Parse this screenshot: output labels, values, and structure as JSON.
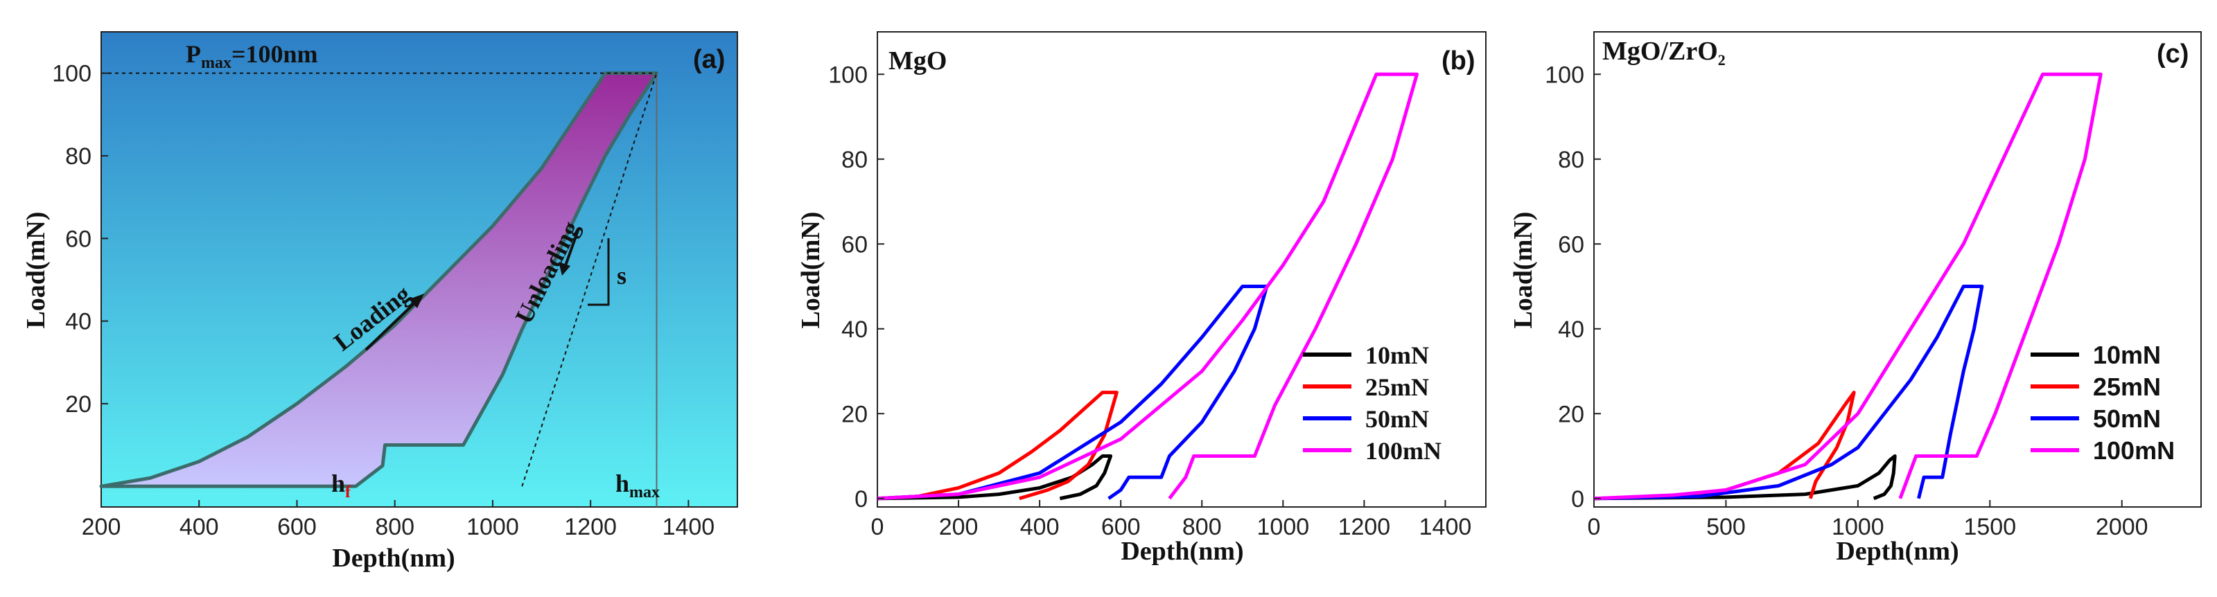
{
  "chart_data": [
    {
      "id": "a",
      "type": "area",
      "panel_label": "(a)",
      "xlabel": "Depth(nm)",
      "ylabel": "Load(mN)",
      "xlim": [
        200,
        1500
      ],
      "ylim": [
        -5,
        110
      ],
      "xticks": [
        200,
        400,
        600,
        800,
        1000,
        1200,
        1400
      ],
      "yticks": [
        20,
        40,
        60,
        80,
        100
      ],
      "annotations": {
        "pmax_label": "P",
        "pmax_sub": "max",
        "pmax_value": "=100nm",
        "loading": "Loading",
        "unloading": "Unloading",
        "stiffness": "s",
        "hf": "h",
        "hf_sub": "f",
        "hmax": "h",
        "hmax_sub": "max"
      },
      "colors": {
        "bg_top": "#2e7fc6",
        "bg_bottom": "#5ef0f4",
        "fill_top": "#9a2a9a",
        "fill_bottom": "#c8c6ff",
        "outline": "#3c6b6b"
      },
      "loading_curve": [
        [
          200,
          0
        ],
        [
          300,
          2
        ],
        [
          400,
          6
        ],
        [
          500,
          12
        ],
        [
          600,
          20
        ],
        [
          700,
          29
        ],
        [
          800,
          39
        ],
        [
          900,
          51
        ],
        [
          1000,
          63
        ],
        [
          1100,
          77
        ],
        [
          1230,
          100
        ]
      ],
      "plateau_top": [
        [
          1230,
          100
        ],
        [
          1335,
          100
        ]
      ],
      "unloading_curve": [
        [
          1335,
          100
        ],
        [
          1280,
          90
        ],
        [
          1230,
          80
        ],
        [
          1180,
          68
        ],
        [
          1140,
          58
        ],
        [
          1100,
          48
        ],
        [
          1060,
          38
        ],
        [
          1020,
          27
        ],
        [
          940,
          10
        ],
        [
          780,
          10
        ],
        [
          775,
          5
        ],
        [
          720,
          0
        ]
      ],
      "pmax_line_y": 100,
      "hmax_x": 1335,
      "tangent_line": [
        [
          1060,
          0
        ],
        [
          1335,
          100
        ]
      ]
    },
    {
      "id": "b",
      "type": "line",
      "panel_label": "(b)",
      "material": "MgO",
      "xlabel": "Depth(nm)",
      "ylabel": "Load(mN)",
      "xlim": [
        0,
        1500
      ],
      "ylim": [
        -2,
        110
      ],
      "xticks": [
        0,
        200,
        400,
        600,
        800,
        1000,
        1200,
        1400
      ],
      "yticks": [
        0,
        20,
        40,
        60,
        80,
        100
      ],
      "series": [
        {
          "name": "10mN",
          "color": "#000000",
          "points": [
            [
              0,
              0
            ],
            [
              200,
              0.3
            ],
            [
              300,
              1
            ],
            [
              400,
              2.5
            ],
            [
              480,
              5
            ],
            [
              530,
              8
            ],
            [
              555,
              10
            ],
            [
              575,
              10
            ],
            [
              560,
              6
            ],
            [
              540,
              3
            ],
            [
              500,
              1
            ],
            [
              450,
              0
            ]
          ]
        },
        {
          "name": "25mN",
          "color": "#ff0000",
          "points": [
            [
              0,
              0
            ],
            [
              100,
              0.5
            ],
            [
              200,
              2.5
            ],
            [
              300,
              6
            ],
            [
              380,
              11
            ],
            [
              450,
              16
            ],
            [
              520,
              22
            ],
            [
              555,
              25
            ],
            [
              590,
              25
            ],
            [
              560,
              15
            ],
            [
              520,
              8
            ],
            [
              470,
              4
            ],
            [
              420,
              2
            ],
            [
              350,
              0
            ]
          ]
        },
        {
          "name": "50mN",
          "color": "#0000ff",
          "points": [
            [
              0,
              0
            ],
            [
              200,
              1
            ],
            [
              400,
              6
            ],
            [
              600,
              18
            ],
            [
              700,
              27
            ],
            [
              800,
              38
            ],
            [
              900,
              50
            ],
            [
              960,
              50
            ],
            [
              930,
              40
            ],
            [
              880,
              30
            ],
            [
              800,
              18
            ],
            [
              720,
              10
            ],
            [
              700,
              5
            ],
            [
              620,
              5
            ],
            [
              600,
              2
            ],
            [
              570,
              0
            ]
          ]
        },
        {
          "name": "100mN",
          "color": "#ff00ff",
          "points": [
            [
              0,
              0
            ],
            [
              200,
              1
            ],
            [
              400,
              5
            ],
            [
              600,
              14
            ],
            [
              800,
              30
            ],
            [
              900,
              42
            ],
            [
              1000,
              55
            ],
            [
              1100,
              70
            ],
            [
              1230,
              100
            ],
            [
              1330,
              100
            ],
            [
              1270,
              80
            ],
            [
              1180,
              60
            ],
            [
              1080,
              40
            ],
            [
              980,
              22
            ],
            [
              930,
              10
            ],
            [
              780,
              10
            ],
            [
              760,
              5
            ],
            [
              720,
              0
            ]
          ]
        }
      ]
    },
    {
      "id": "c",
      "type": "line",
      "panel_label": "(c)",
      "material": "MgO/ZrO",
      "material_sub": "2",
      "xlabel": "Depth(nm)",
      "ylabel": "Load(mN)",
      "xlim": [
        0,
        2300
      ],
      "ylim": [
        -2,
        110
      ],
      "xticks": [
        0,
        500,
        1000,
        1500,
        2000
      ],
      "yticks": [
        0,
        20,
        40,
        60,
        80,
        100
      ],
      "series": [
        {
          "name": "10mN",
          "color": "#000000",
          "points": [
            [
              0,
              0
            ],
            [
              500,
              0.3
            ],
            [
              800,
              1
            ],
            [
              1000,
              3
            ],
            [
              1080,
              6
            ],
            [
              1120,
              9
            ],
            [
              1140,
              10
            ],
            [
              1135,
              6
            ],
            [
              1125,
              3
            ],
            [
              1100,
              1
            ],
            [
              1060,
              0
            ]
          ]
        },
        {
          "name": "25mN",
          "color": "#ff0000",
          "points": [
            [
              0,
              0
            ],
            [
              300,
              0.5
            ],
            [
              500,
              2
            ],
            [
              700,
              6
            ],
            [
              850,
              13
            ],
            [
              950,
              22
            ],
            [
              985,
              25
            ],
            [
              960,
              18
            ],
            [
              920,
              12
            ],
            [
              880,
              8
            ],
            [
              840,
              4
            ],
            [
              820,
              0
            ]
          ]
        },
        {
          "name": "50mN",
          "color": "#0000ff",
          "points": [
            [
              0,
              0
            ],
            [
              400,
              0.5
            ],
            [
              700,
              3
            ],
            [
              900,
              8
            ],
            [
              1000,
              12
            ],
            [
              1100,
              20
            ],
            [
              1200,
              28
            ],
            [
              1300,
              38
            ],
            [
              1400,
              50
            ],
            [
              1470,
              50
            ],
            [
              1440,
              40
            ],
            [
              1400,
              30
            ],
            [
              1350,
              15
            ],
            [
              1320,
              5
            ],
            [
              1250,
              5
            ],
            [
              1230,
              0
            ]
          ]
        },
        {
          "name": "100mN",
          "color": "#ff00ff",
          "points": [
            [
              0,
              0
            ],
            [
              300,
              0.8
            ],
            [
              500,
              2
            ],
            [
              800,
              8
            ],
            [
              1000,
              20
            ],
            [
              1200,
              40
            ],
            [
              1400,
              60
            ],
            [
              1550,
              80
            ],
            [
              1700,
              100
            ],
            [
              1920,
              100
            ],
            [
              1860,
              80
            ],
            [
              1760,
              60
            ],
            [
              1640,
              40
            ],
            [
              1520,
              20
            ],
            [
              1450,
              10
            ],
            [
              1220,
              10
            ],
            [
              1190,
              5
            ],
            [
              1160,
              0
            ]
          ]
        }
      ]
    }
  ]
}
